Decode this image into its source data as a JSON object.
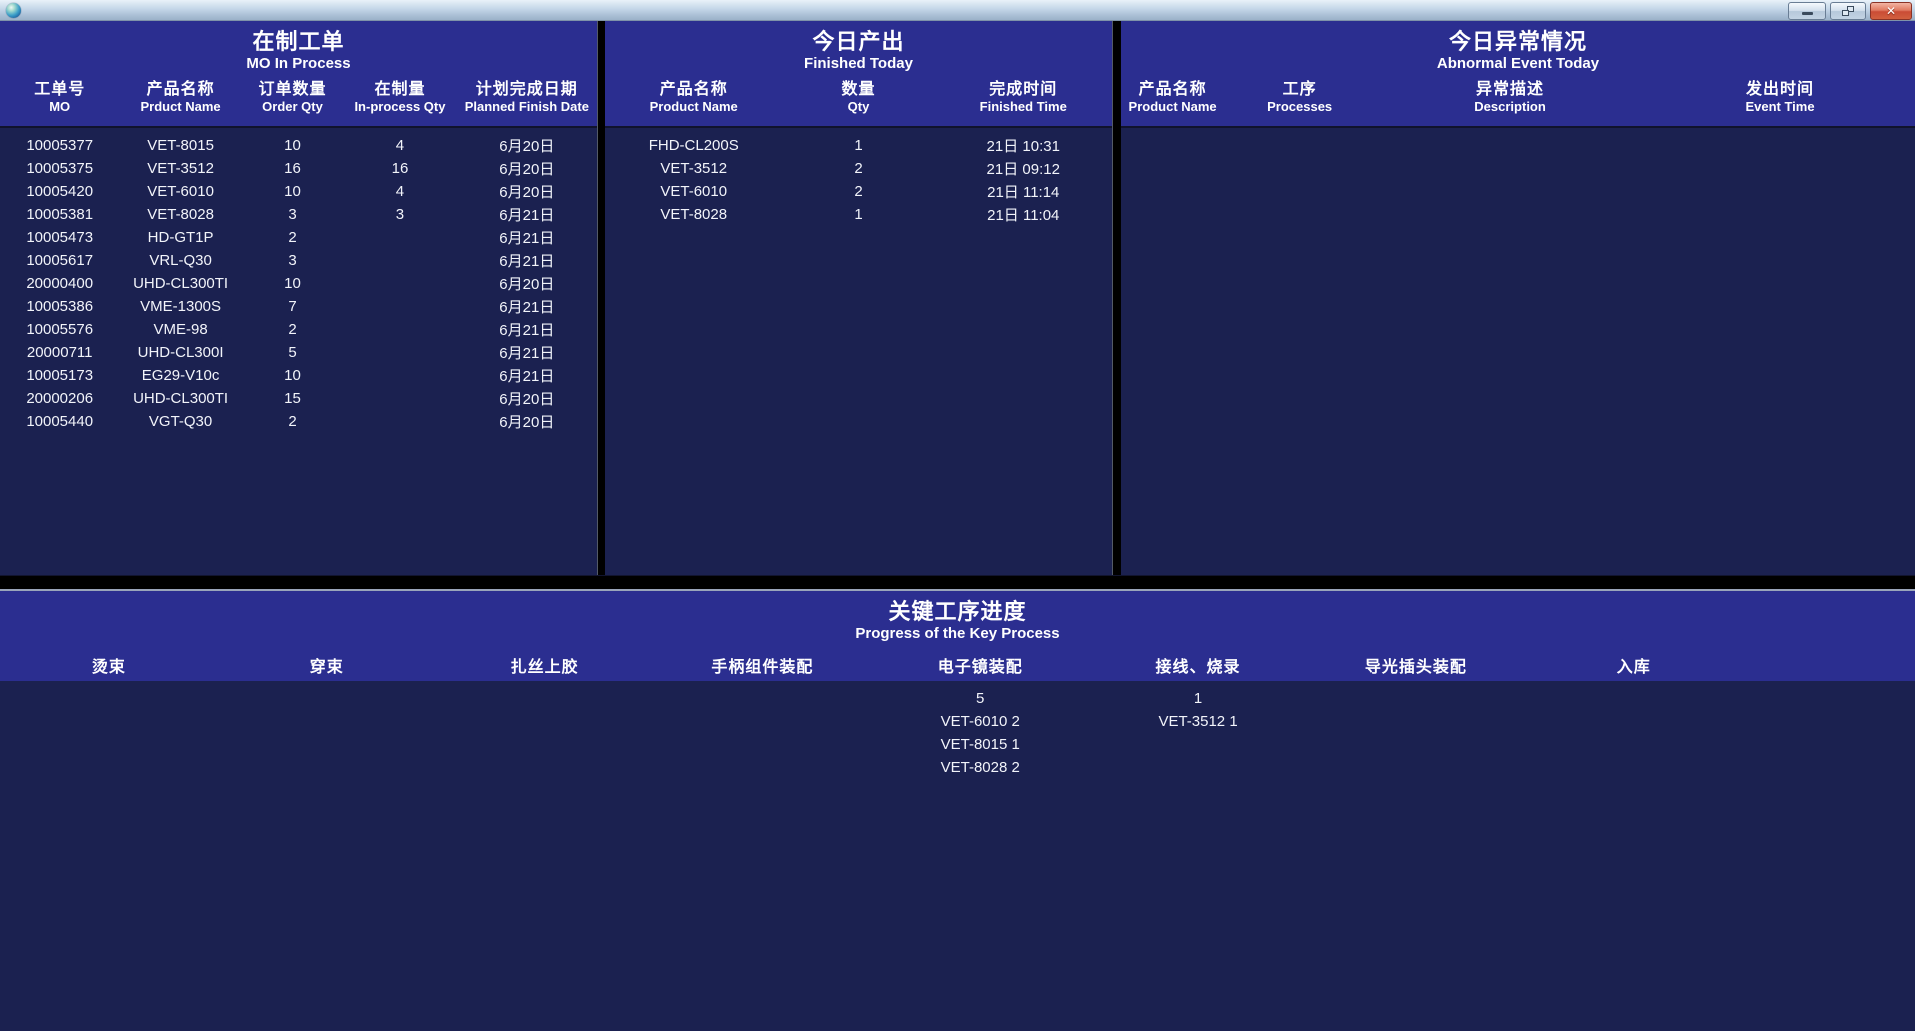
{
  "window": {
    "app_icon": "globe-icon",
    "controls": [
      {
        "name": "minimize-button",
        "icon": "minimize-icon"
      },
      {
        "name": "restore-button",
        "icon": "restore-window-icon"
      },
      {
        "name": "close-button",
        "icon": "close-icon",
        "glyph": "✕"
      }
    ]
  },
  "colors": {
    "header_band": "#2b2e90",
    "panel_body": "#1b2150",
    "divider": "#000000",
    "titlebar_top": "#e9f1f9",
    "titlebar_bottom": "#9bb1c9",
    "close_button": "#ca4c35",
    "text": "#ffffff"
  },
  "panels": {
    "mo_in_process": {
      "title_zh": "在制工单",
      "title_en": "MO In Process",
      "columns": [
        {
          "zh": "工单号",
          "en": "MO"
        },
        {
          "zh": "产品名称",
          "en": "Prduct Name"
        },
        {
          "zh": "订单数量",
          "en": "Order Qty"
        },
        {
          "zh": "在制量",
          "en": "In-process Qty"
        },
        {
          "zh": "计划完成日期",
          "en": "Planned Finish Date"
        }
      ],
      "rows": [
        [
          "10005377",
          "VET-8015",
          "10",
          "4",
          "6月20日"
        ],
        [
          "10005375",
          "VET-3512",
          "16",
          "16",
          "6月20日"
        ],
        [
          "10005420",
          "VET-6010",
          "10",
          "4",
          "6月20日"
        ],
        [
          "10005381",
          "VET-8028",
          "3",
          "3",
          "6月21日"
        ],
        [
          "10005473",
          "HD-GT1P",
          "2",
          "",
          "6月21日"
        ],
        [
          "10005617",
          "VRL-Q30",
          "3",
          "",
          "6月21日"
        ],
        [
          "20000400",
          "UHD-CL300TI",
          "10",
          "",
          "6月20日"
        ],
        [
          "10005386",
          "VME-1300S",
          "7",
          "",
          "6月21日"
        ],
        [
          "10005576",
          "VME-98",
          "2",
          "",
          "6月21日"
        ],
        [
          "20000711",
          "UHD-CL300I",
          "5",
          "",
          "6月21日"
        ],
        [
          "10005173",
          "EG29-V10c",
          "10",
          "",
          "6月21日"
        ],
        [
          "20000206",
          "UHD-CL300TI",
          "15",
          "",
          "6月20日"
        ],
        [
          "10005440",
          "VGT-Q30",
          "2",
          "",
          "6月20日"
        ]
      ]
    },
    "finished_today": {
      "title_zh": "今日产出",
      "title_en": "Finished Today",
      "columns": [
        {
          "zh": "产品名称",
          "en": "Product Name"
        },
        {
          "zh": "数量",
          "en": "Qty"
        },
        {
          "zh": "完成时间",
          "en": "Finished Time"
        }
      ],
      "rows": [
        [
          "FHD-CL200S",
          "1",
          "21日 10:31"
        ],
        [
          "VET-3512",
          "2",
          "21日 09:12"
        ],
        [
          "VET-6010",
          "2",
          "21日 11:14"
        ],
        [
          "VET-8028",
          "1",
          "21日 11:04"
        ]
      ]
    },
    "abnormal_event": {
      "title_zh": "今日异常情况",
      "title_en": "Abnormal Event Today",
      "columns": [
        {
          "zh": "产品名称",
          "en": "Product Name"
        },
        {
          "zh": "工序",
          "en": "Processes"
        },
        {
          "zh": "异常描述",
          "en": "Description"
        },
        {
          "zh": "发出时间",
          "en": "Event Time"
        }
      ],
      "rows": []
    },
    "key_process": {
      "title_zh": "关键工序进度",
      "title_en": "Progress of the Key Process",
      "processes": [
        "烫束",
        "穿束",
        "扎丝上胶",
        "手柄组件装配",
        "电子镜装配",
        "接线、烧录",
        "导光插头装配",
        "入库"
      ],
      "progress": [
        [],
        [],
        [],
        [],
        [
          "5",
          "VET-6010 2",
          "VET-8015 1",
          "VET-8028 2"
        ],
        [
          "1",
          "VET-3512 1"
        ],
        [],
        []
      ]
    }
  }
}
